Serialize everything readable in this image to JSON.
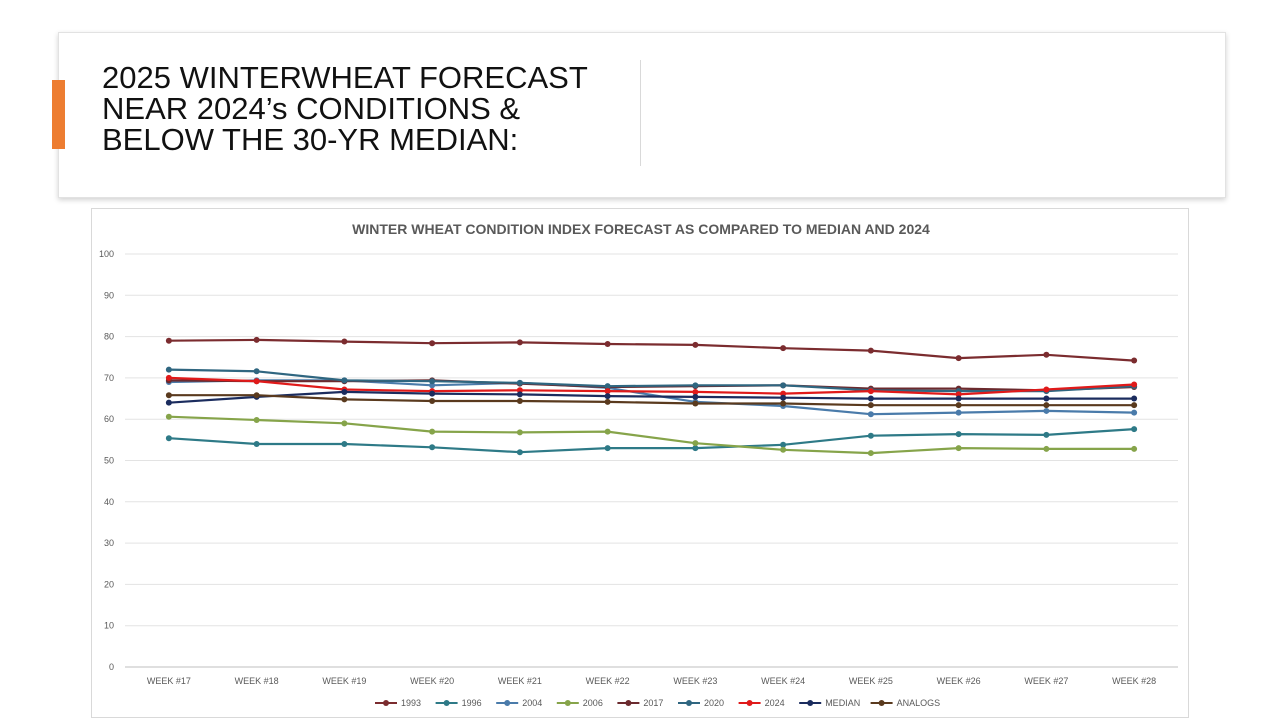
{
  "slide": {
    "title_lines": [
      "2025 WINTERWHEAT FORECAST",
      "NEAR 2024’s CONDITIONS &",
      "BELOW THE 30-YR MEDIAN:"
    ],
    "accent_color": "#ED7D31"
  },
  "chart_data": {
    "type": "line",
    "title": "WINTER WHEAT CONDITION INDEX FORECAST AS COMPARED TO MEDIAN AND 2024",
    "xlabel": "",
    "ylabel": "",
    "categories": [
      "WEEK #17",
      "WEEK #18",
      "WEEK #19",
      "WEEK #20",
      "WEEK #21",
      "WEEK #22",
      "WEEK #23",
      "WEEK #24",
      "WEEK #25",
      "WEEK #26",
      "WEEK #27",
      "WEEK #28"
    ],
    "ylim": [
      0,
      100
    ],
    "yticks": [
      "0",
      "10",
      "20",
      "30",
      "40",
      "50",
      "60",
      "70",
      "80",
      "90",
      "100"
    ],
    "grid": true,
    "legend_position": "bottom",
    "series": [
      {
        "name": "1993",
        "color": "#7B2C2F",
        "values": [
          79,
          79.2,
          78.8,
          78.4,
          78.6,
          78.2,
          78,
          77.2,
          76.6,
          74.8,
          75.6,
          74.2
        ]
      },
      {
        "name": "1996",
        "color": "#2E7A87",
        "values": [
          55.4,
          54,
          54,
          53.2,
          52,
          53,
          53,
          53.8,
          56,
          56.4,
          56.2,
          57.6
        ]
      },
      {
        "name": "2004",
        "color": "#4A7BAA",
        "values": [
          69,
          69.4,
          69.4,
          68.2,
          68.8,
          67.6,
          64.2,
          63.2,
          61.2,
          61.6,
          62,
          61.6
        ]
      },
      {
        "name": "2006",
        "color": "#86A44A",
        "values": [
          60.6,
          59.8,
          59,
          57,
          56.8,
          57,
          54.2,
          52.6,
          51.8,
          53,
          52.8,
          52.8
        ]
      },
      {
        "name": "2017",
        "color": "#6B2A2E",
        "values": [
          69.4,
          69.2,
          69.2,
          69.4,
          68.6,
          67.8,
          68,
          68.2,
          67.4,
          67.4,
          67,
          67.8
        ]
      },
      {
        "name": "2020",
        "color": "#2F6680",
        "values": [
          72,
          71.6,
          69.4,
          69.2,
          68.8,
          68,
          68.2,
          68.2,
          67,
          66.8,
          66.8,
          68
        ]
      },
      {
        "name": "2024",
        "color": "#E01A1A",
        "values": [
          70,
          69.2,
          67.2,
          66.8,
          67,
          66.8,
          66.6,
          66.2,
          66.8,
          66,
          67.2,
          68.4
        ]
      },
      {
        "name": "MEDIAN",
        "color": "#1B2C5E",
        "values": [
          64,
          65.4,
          66.6,
          66.2,
          66,
          65.6,
          65.4,
          65.2,
          65,
          65,
          65,
          65
        ]
      },
      {
        "name": "ANALOGS",
        "color": "#5A3A1E",
        "values": [
          65.8,
          65.8,
          64.8,
          64.4,
          64.4,
          64.2,
          63.8,
          63.8,
          63.4,
          63.4,
          63.4,
          63.4
        ]
      }
    ]
  }
}
